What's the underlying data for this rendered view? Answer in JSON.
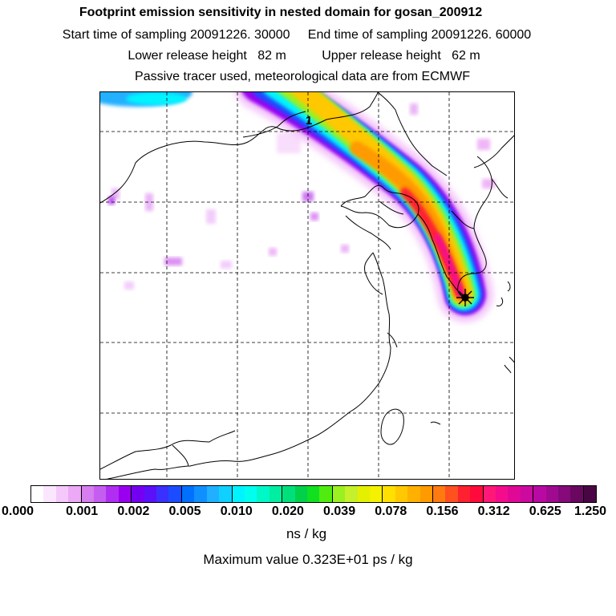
{
  "titles": {
    "line1": "Footprint emission sensitivity in nested domain for gosan_200912",
    "line2": "Start time of sampling 20091226. 30000     End time of sampling 20091226. 60000",
    "line3": "Lower release height   82 m          Upper release height   62 m",
    "line4": "Passive tracer used, meteorological data are from ECMWF"
  },
  "map": {
    "day_marker": "1",
    "colors": {
      "land_border": "#000000",
      "grid": "#000000"
    }
  },
  "colorbar": {
    "tick_labels": [
      "0.000",
      "0.001",
      "0.002",
      "0.005",
      "0.010",
      "0.020",
      "0.039",
      "0.078",
      "0.156",
      "0.312",
      "0.625",
      "1.250"
    ],
    "colors": [
      "#ffffff",
      "#fbe6ff",
      "#f5c8fb",
      "#eca9f6",
      "#d67df0",
      "#c45ef0",
      "#b02ef2",
      "#9a00f0",
      "#7400f2",
      "#5a10f8",
      "#3a30ff",
      "#1c4cff",
      "#0070ff",
      "#1090ff",
      "#20b0ff",
      "#10d0ff",
      "#00f4ff",
      "#00ffee",
      "#00f8c8",
      "#00eea0",
      "#00e07a",
      "#00d04a",
      "#10e020",
      "#50ec10",
      "#9af020",
      "#c4f02c",
      "#e4f000",
      "#f4f200",
      "#ffe000",
      "#ffc800",
      "#ffb000",
      "#ff9a00",
      "#ff7a10",
      "#ff5020",
      "#ff2030",
      "#ff0a3a",
      "#ff1878",
      "#f40c8c",
      "#e00896",
      "#cc0aa0",
      "#b80aa2",
      "#a00a90",
      "#860a7a",
      "#6a0860",
      "#4a0644"
    ],
    "unit": "ns / kg",
    "maximum": "Maximum value  0.323E+01 ps / kg"
  }
}
